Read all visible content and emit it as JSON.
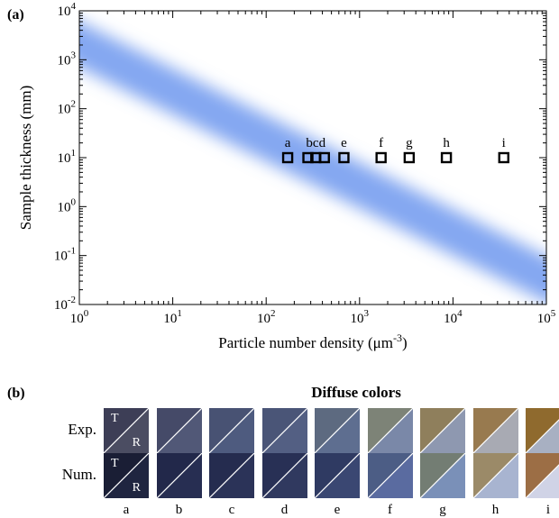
{
  "panel_a": {
    "label": "(a)",
    "chart_data": {
      "type": "scatter",
      "xlabel": "Particle number density (μm",
      "xlabel_exp": "-3",
      "xlabel_close": ")",
      "ylabel": "Sample thickness (mm)",
      "xscale": "log",
      "yscale": "log",
      "xlim": [
        1,
        100000
      ],
      "ylim": [
        0.01,
        10000
      ],
      "x_ticks": [
        {
          "base": "10",
          "exp": "0"
        },
        {
          "base": "10",
          "exp": "1"
        },
        {
          "base": "10",
          "exp": "2"
        },
        {
          "base": "10",
          "exp": "3"
        },
        {
          "base": "10",
          "exp": "4"
        },
        {
          "base": "10",
          "exp": "5"
        }
      ],
      "y_ticks": [
        {
          "base": "10",
          "exp": "-2"
        },
        {
          "base": "10",
          "exp": "-1"
        },
        {
          "base": "10",
          "exp": "0"
        },
        {
          "base": "10",
          "exp": "1"
        },
        {
          "base": "10",
          "exp": "2"
        },
        {
          "base": "10",
          "exp": "3"
        },
        {
          "base": "10",
          "exp": "4"
        }
      ],
      "band": {
        "color": "#6f98ee",
        "center_y_at_x1": 3000,
        "slope_decades": -1.025,
        "halfwidth_decades": 0.47
      },
      "points": [
        {
          "label": "a",
          "x": 170,
          "y": 10
        },
        {
          "label": "b",
          "x": 280,
          "y": 10
        },
        {
          "label": "c",
          "x": 340,
          "y": 10
        },
        {
          "label": "d",
          "x": 420,
          "y": 10
        },
        {
          "label": "e",
          "x": 680,
          "y": 10
        },
        {
          "label": "f",
          "x": 1700,
          "y": 10
        },
        {
          "label": "g",
          "x": 3400,
          "y": 10
        },
        {
          "label": "h",
          "x": 8500,
          "y": 10
        },
        {
          "label": "i",
          "x": 35000,
          "y": 10
        }
      ],
      "point_labels": [
        {
          "text": "a",
          "x": 170
        },
        {
          "text": "bcd",
          "x": 340
        },
        {
          "text": "e",
          "x": 680
        },
        {
          "text": "f",
          "x": 1700
        },
        {
          "text": "g",
          "x": 3400
        },
        {
          "text": "h",
          "x": 8500
        },
        {
          "text": "i",
          "x": 35000
        }
      ],
      "grid": false,
      "marker": "open-square"
    }
  },
  "panel_b": {
    "label": "(b)",
    "title": "Diffuse colors",
    "corner_labels": {
      "transmitted": "T",
      "reflected": "R"
    },
    "rows": [
      {
        "label": "Exp.",
        "swatches": [
          {
            "t": "#3d3e56",
            "r": "#4b4d62"
          },
          {
            "t": "#454a68",
            "r": "#515877"
          },
          {
            "t": "#485273",
            "r": "#4e5b7f"
          },
          {
            "t": "#4a5577",
            "r": "#535f83"
          },
          {
            "t": "#5d6a80",
            "r": "#5e6e90"
          },
          {
            "t": "#7d8377",
            "r": "#7a88a8"
          },
          {
            "t": "#8f7f5c",
            "r": "#8e98b0"
          },
          {
            "t": "#987a4f",
            "r": "#a8aab3"
          },
          {
            "t": "#8f6a2e",
            "r": "#a8b0c2"
          }
        ]
      },
      {
        "label": "Num.",
        "swatches": [
          {
            "t": "#1a1e35",
            "r": "#1f2540"
          },
          {
            "t": "#22284a",
            "r": "#272e52"
          },
          {
            "t": "#252c4f",
            "r": "#2b3358"
          },
          {
            "t": "#283055",
            "r": "#30395f"
          },
          {
            "t": "#2f3a62",
            "r": "#3a4772"
          },
          {
            "t": "#4c5d85",
            "r": "#5a6ba0"
          },
          {
            "t": "#737d73",
            "r": "#7a90b8"
          },
          {
            "t": "#9b8a68",
            "r": "#a8b4d0"
          },
          {
            "t": "#9c6e45",
            "r": "#d0d3e6"
          }
        ]
      }
    ],
    "column_labels": [
      "a",
      "b",
      "c",
      "d",
      "e",
      "f",
      "g",
      "h",
      "i"
    ]
  }
}
